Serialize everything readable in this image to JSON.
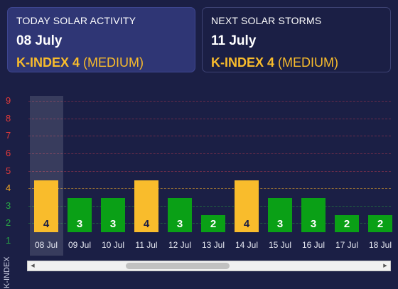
{
  "today_card": {
    "title": "TODAY SOLAR ACTIVITY",
    "date": "08 July",
    "kindex_label": "K-INDEX 4",
    "kindex_level": "(MEDIUM)"
  },
  "next_card": {
    "title": "NEXT SOLAR STORMS",
    "date": "11 July",
    "kindex_label": "K-INDEX 4",
    "kindex_level": "(MEDIUM)"
  },
  "colors": {
    "background": "#1b1f45",
    "accent_orange": "#f9bc2c",
    "bar_green": "#0aa016",
    "tick_red": "#e23a3a",
    "tick_orange": "#f0a623",
    "tick_green": "#28a745"
  },
  "chart_data": {
    "type": "bar",
    "ylabel": "K-INDEX",
    "ylim": [
      1,
      9
    ],
    "y_ticks": [
      "1",
      "2",
      "3",
      "4",
      "5",
      "6",
      "7",
      "8",
      "9"
    ],
    "categories": [
      "08 Jul",
      "09 Jul",
      "10 Jul",
      "11 Jul",
      "12 Jul",
      "13 Jul",
      "14 Jul",
      "15 Jul",
      "16 Jul",
      "17 Jul",
      "18 Jul"
    ],
    "values": [
      4,
      3,
      3,
      4,
      3,
      2,
      4,
      3,
      3,
      2,
      2
    ],
    "value_labels": [
      "4",
      "3",
      "3",
      "4",
      "3",
      "2",
      "4",
      "3",
      "3",
      "2",
      "2"
    ],
    "highlighted_category": "08 Jul",
    "grid": true,
    "legend": "none"
  },
  "scrollbar": {
    "left_arrow": "◀",
    "right_arrow": "▶"
  }
}
